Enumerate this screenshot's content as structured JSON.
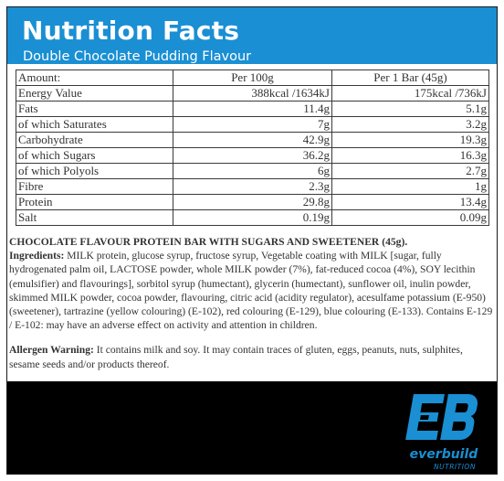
{
  "title": "Nutrition Facts",
  "subtitle": "Double Chocolate Pudding Flavour",
  "table": {
    "headers": [
      "Amount:",
      "Per 100g",
      "Per 1 Bar (45g)"
    ],
    "rows": [
      {
        "label": "Energy Value",
        "per100": "388kcal /1634kJ",
        "perBar": "175kcal /736kJ"
      },
      {
        "label": "Fats",
        "per100": "11.4g",
        "perBar": "5.1g"
      },
      {
        "label": "of which Saturates",
        "per100": "7g",
        "perBar": "3.2g"
      },
      {
        "label": "Carbohydrate",
        "per100": "42.9g",
        "perBar": "19.3g"
      },
      {
        "label": "of which Sugars",
        "per100": "36.2g",
        "perBar": "16.3g"
      },
      {
        "label": "of which Polyols",
        "per100": "6g",
        "perBar": "2.7g"
      },
      {
        "label": "Fibre",
        "per100": "2.3g",
        "perBar": "1g"
      },
      {
        "label": "Protein",
        "per100": "29.8g",
        "perBar": "13.4g"
      },
      {
        "label": "Salt",
        "per100": "0.19g",
        "perBar": "0.09g"
      }
    ]
  },
  "product_line": "CHOCOLATE FLAVOUR PROTEIN BAR WITH SUGARS AND SWEETENER (45g).",
  "ingredients": {
    "label": "Ingredients:",
    "text": " MILK protein, glucose syrup, fructose syrup, Vegetable coating with MILK [sugar, fully hydrogenated palm oil, LACTOSE powder, whole MILK powder (7%), fat-reduced cocoa (4%), SOY lecithin (emulsifier) and flavourings], sorbitol syrup (humectant), glycerin (humectant), sunflower oil, inulin powder, skimmed MILK powder, cocoa powder, flavouring, citric acid (acidity regulator), acesulfame potassium (E-950) (sweetener), tartrazine (yellow colouring) (E-102), red colouring (E-129), blue colouring (E-133). Contains E-129 / E-102: may have an adverse effect on activity and attention in children."
  },
  "allergen": {
    "label": "Allergen Warning:",
    "text": " It contains milk and soy. It may contain traces of gluten, eggs, peanuts, nuts, sulphites, sesame seeds and/or products thereof."
  },
  "logo": {
    "monogram": "EB",
    "brand": "everbuild",
    "tagline": "NUTRITION"
  },
  "colors": {
    "header_blue": "#1a8fd3",
    "logo_blue": "#1a8fd3",
    "footer_black": "#000000"
  }
}
